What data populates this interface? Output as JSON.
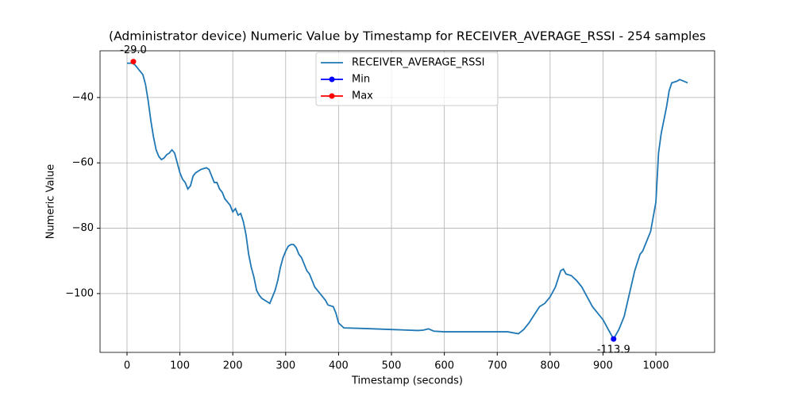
{
  "chart_data": {
    "type": "line",
    "title": "(Administrator device) Numeric Value by Timestamp for RECEIVER_AVERAGE_RSSI - 254 samples",
    "x_label": "Timestamp (seconds)",
    "y_label": "Numeric Value",
    "xlim": [
      -51,
      1111
    ],
    "ylim": [
      -118,
      -25.7
    ],
    "xticks": [
      0,
      100,
      200,
      300,
      400,
      500,
      600,
      700,
      800,
      900,
      1000
    ],
    "yticks": [
      {
        "value": -100,
        "label": "−100"
      },
      {
        "value": -80,
        "label": "−80"
      },
      {
        "value": -60,
        "label": "−60"
      },
      {
        "value": -40,
        "label": "−40"
      }
    ],
    "grid": true,
    "legend": "upper center",
    "series": [
      {
        "name": "RECEIVER_AVERAGE_RSSI",
        "color": "#1f77b4",
        "x": [
          0,
          10,
          15,
          20,
          25,
          30,
          35,
          40,
          45,
          50,
          55,
          60,
          65,
          70,
          75,
          80,
          85,
          90,
          95,
          100,
          105,
          110,
          115,
          120,
          125,
          130,
          135,
          140,
          150,
          155,
          160,
          165,
          170,
          175,
          180,
          185,
          190,
          195,
          200,
          205,
          210,
          215,
          220,
          225,
          230,
          235,
          240,
          245,
          250,
          255,
          260,
          270,
          275,
          280,
          285,
          290,
          295,
          300,
          305,
          310,
          315,
          320,
          325,
          330,
          335,
          340,
          345,
          350,
          355,
          360,
          365,
          370,
          375,
          380,
          390,
          395,
          400,
          410,
          450,
          500,
          550,
          560,
          570,
          580,
          600,
          650,
          720,
          740,
          750,
          760,
          770,
          780,
          790,
          800,
          810,
          820,
          825,
          830,
          840,
          850,
          860,
          870,
          880,
          890,
          900,
          910,
          920,
          930,
          940,
          950,
          960,
          970,
          975,
          980,
          990,
          1000,
          1005,
          1010,
          1020,
          1025,
          1030,
          1040,
          1045,
          1060
        ],
        "values": [
          -29.5,
          -29.5,
          -30,
          -31,
          -32,
          -33,
          -36,
          -41,
          -47,
          -52,
          -56,
          -58,
          -59,
          -58.5,
          -57.5,
          -57,
          -56,
          -57,
          -60,
          -63,
          -65,
          -66,
          -68,
          -67,
          -64,
          -63,
          -62.5,
          -62,
          -61.5,
          -62,
          -64,
          -66,
          -66,
          -68,
          -69,
          -71,
          -72,
          -73,
          -75,
          -74,
          -76,
          -75.5,
          -78,
          -82,
          -88,
          -92,
          -95,
          -99,
          -100.5,
          -101.5,
          -102,
          -103,
          -101,
          -99,
          -96,
          -92,
          -89,
          -87,
          -85.5,
          -85,
          -85,
          -86,
          -88,
          -89,
          -91,
          -93,
          -94,
          -96,
          -98,
          -99,
          -100,
          -101,
          -102,
          -103.5,
          -104,
          -106,
          -109,
          -110.5,
          -110.7,
          -111,
          -111.3,
          -111.2,
          -110.8,
          -111.5,
          -111.7,
          -111.7,
          -111.7,
          -112.3,
          -111,
          -109,
          -106.5,
          -104,
          -103,
          -101,
          -98,
          -93,
          -92.5,
          -94,
          -94.5,
          -96,
          -98,
          -101,
          -104,
          -106,
          -108,
          -111,
          -113.9,
          -111,
          -107,
          -100,
          -93,
          -88,
          -87,
          -85,
          -81,
          -72,
          -57,
          -51,
          -43,
          -38,
          -35.5,
          -35,
          -34.5,
          -35.5
        ]
      },
      {
        "name": "Min",
        "color": "#0000ff",
        "marker": true,
        "x": [
          920
        ],
        "values": [
          -113.9
        ],
        "value_labels": [
          "-113.9"
        ]
      },
      {
        "name": "Max",
        "color": "#ff0000",
        "marker": true,
        "x": [
          12
        ],
        "values": [
          -29.0
        ],
        "value_labels": [
          "-29.0"
        ]
      }
    ]
  }
}
